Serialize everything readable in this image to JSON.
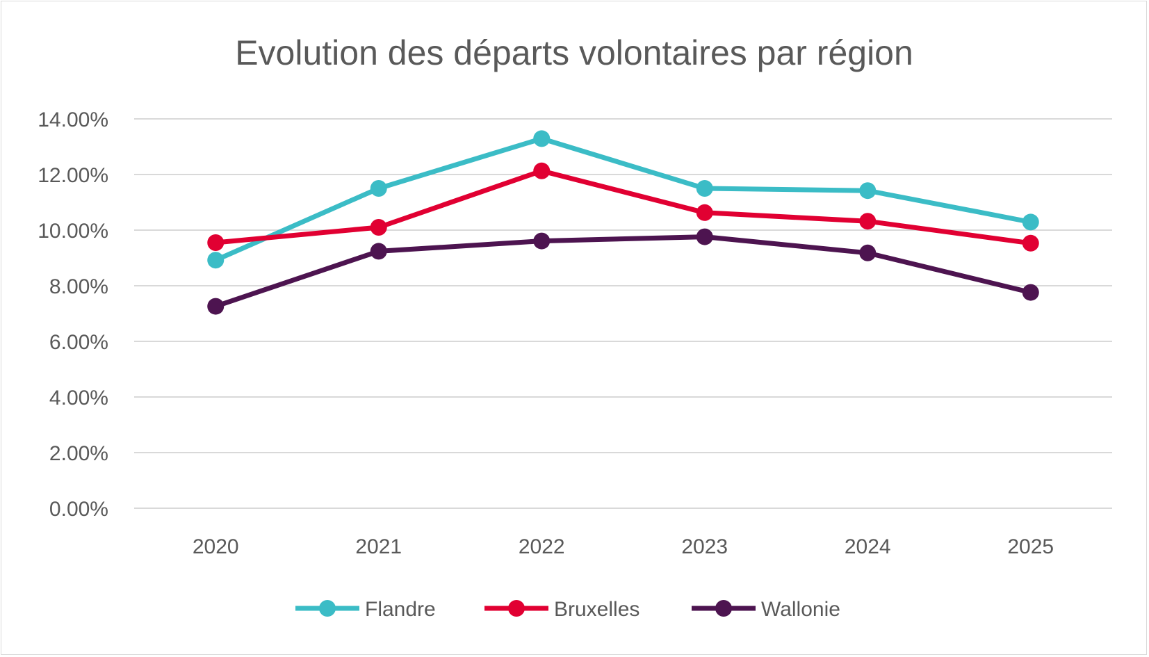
{
  "chart_data": {
    "type": "line",
    "title": "Evolution des départs volontaires par région",
    "xlabel": "",
    "ylabel": "",
    "categories": [
      "2020",
      "2021",
      "2022",
      "2023",
      "2024",
      "2025"
    ],
    "ylim": [
      0,
      14
    ],
    "yticks": [
      0,
      2,
      4,
      6,
      8,
      10,
      12,
      14
    ],
    "ytick_labels": [
      "0.00%",
      "2.00%",
      "4.00%",
      "6.00%",
      "8.00%",
      "10.00%",
      "12.00%",
      "14.00%"
    ],
    "grid": true,
    "legend_position": "bottom",
    "series": [
      {
        "name": "Flandre",
        "color": "#3BBCC6",
        "values": [
          8.92,
          11.5,
          13.29,
          11.5,
          11.42,
          10.29
        ]
      },
      {
        "name": "Bruxelles",
        "color": "#E10032",
        "values": [
          9.55,
          10.1,
          12.13,
          10.63,
          10.32,
          9.53
        ]
      },
      {
        "name": "Wallonie",
        "color": "#4D1450",
        "values": [
          7.26,
          9.24,
          9.61,
          9.76,
          9.18,
          7.76
        ]
      }
    ]
  }
}
